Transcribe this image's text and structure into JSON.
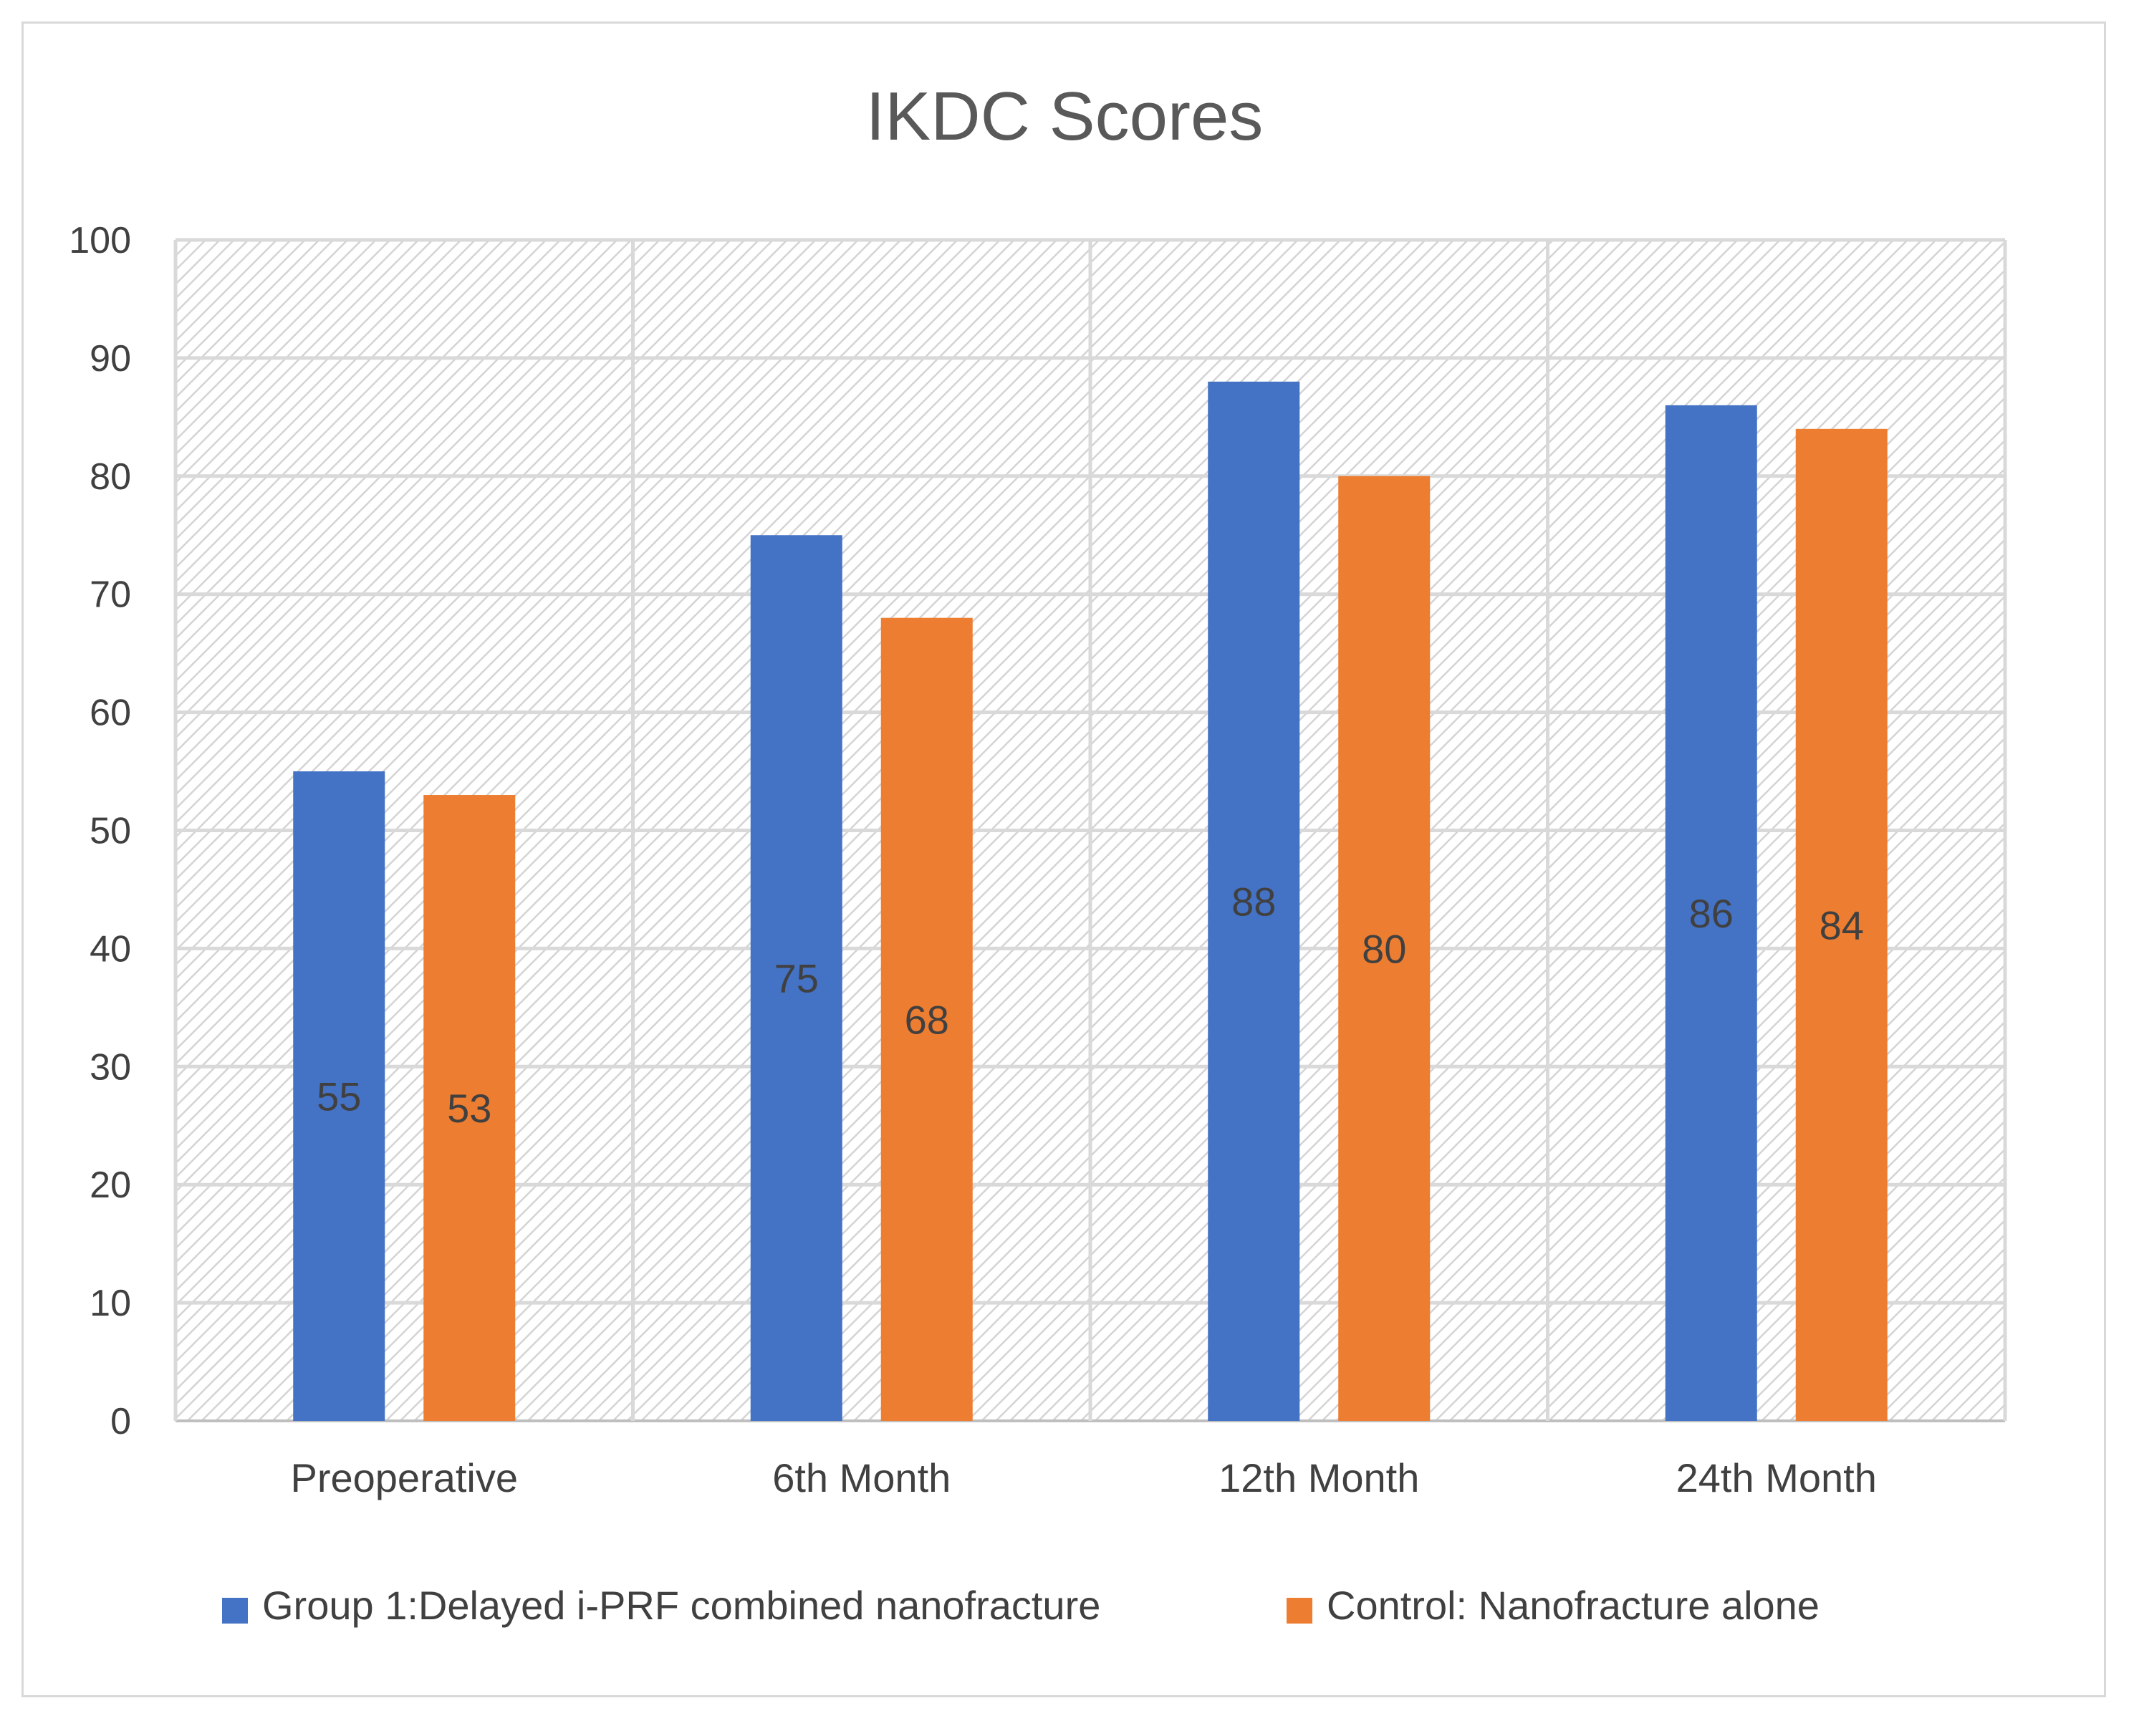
{
  "chart_data": {
    "type": "bar",
    "title": "IKDC Scores",
    "xlabel": "",
    "ylabel": "",
    "categories": [
      "Preoperative",
      "6th Month",
      "12th Month",
      "24th Month"
    ],
    "series": [
      {
        "name": "Group 1:Delayed i-PRF combined nanofracture",
        "color": "#4472c4",
        "values": [
          55,
          75,
          88,
          86
        ]
      },
      {
        "name": "Control: Nanofracture alone",
        "color": "#ed7d31",
        "values": [
          53,
          68,
          80,
          84
        ]
      }
    ],
    "ylim": [
      0,
      100
    ],
    "yticks": [
      0,
      10,
      20,
      30,
      40,
      50,
      60,
      70,
      80,
      90,
      100
    ],
    "grid": true,
    "plot_background": "diagonal hatch, light gray",
    "data_labels": "inside bars, middle",
    "legend_position": "bottom"
  }
}
